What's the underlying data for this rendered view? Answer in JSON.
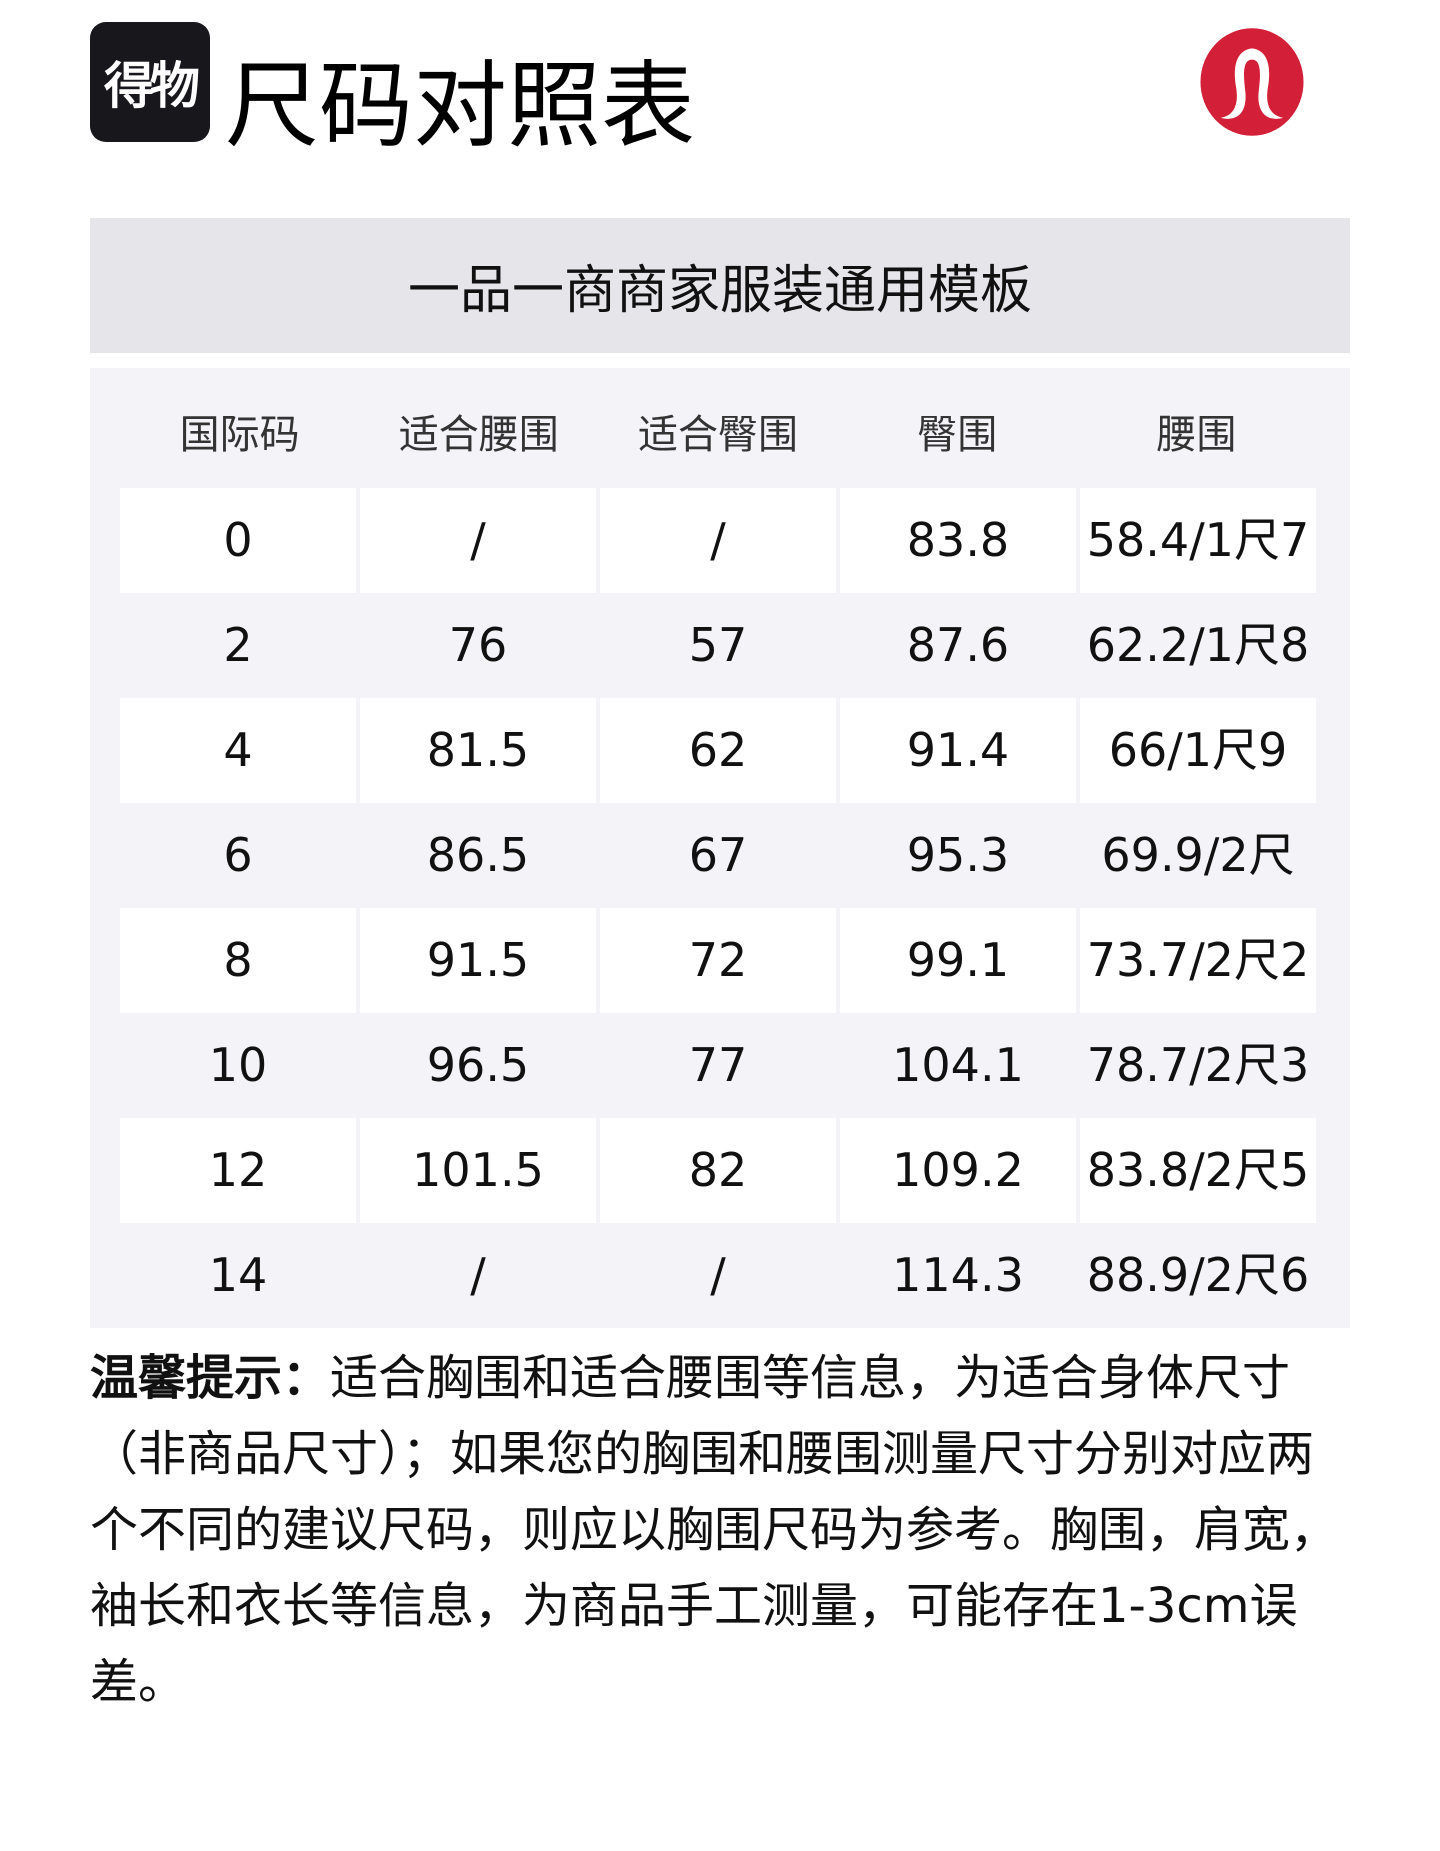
{
  "brand": {
    "logo_text": "得物",
    "title": "尺码对照表",
    "partner_logo": "lululemon-logo",
    "partner_color": "#d31f37"
  },
  "banner": {
    "text": "一品一商商家服装通用模板"
  },
  "table": {
    "headers": [
      "国际码",
      "适合腰围",
      "适合臀围",
      "臀围",
      "腰围"
    ],
    "rows": [
      [
        "0",
        "/",
        "/",
        "83.8",
        "58.4/1尺7"
      ],
      [
        "2",
        "76",
        "57",
        "87.6",
        "62.2/1尺8"
      ],
      [
        "4",
        "81.5",
        "62",
        "91.4",
        "66/1尺9"
      ],
      [
        "6",
        "86.5",
        "67",
        "95.3",
        "69.9/2尺"
      ],
      [
        "8",
        "91.5",
        "72",
        "99.1",
        "73.7/2尺2"
      ],
      [
        "10",
        "96.5",
        "77",
        "104.1",
        "78.7/2尺3"
      ],
      [
        "12",
        "101.5",
        "82",
        "109.2",
        "83.8/2尺5"
      ],
      [
        "14",
        "/",
        "/",
        "114.3",
        "88.9/2尺6"
      ]
    ]
  },
  "note": {
    "label": "温馨提示：",
    "text": "适合胸围和适合腰围等信息，为适合身体尺寸（非商品尺寸）；如果您的胸围和腰围测量尺寸分别对应两个不同的建议尺码，则应以胸围尺码为参考。胸围，肩宽，袖长和衣长等信息，为商品手工测量，可能存在1-3cm误差。"
  }
}
